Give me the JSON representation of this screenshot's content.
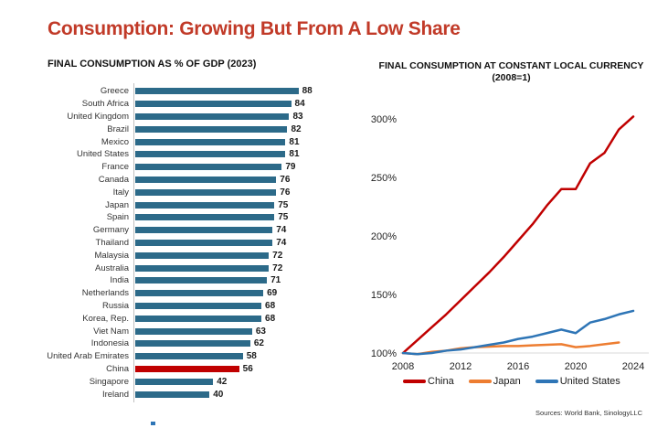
{
  "page": {
    "title": "Consumption: Growing But From A Low Share",
    "title_color": "#C13A28"
  },
  "footer": {
    "sources": "Sources: World Bank, SinologyLLC"
  },
  "chart_data": [
    {
      "type": "bar",
      "orientation": "horizontal",
      "title": "FINAL CONSUMPTION AS % OF GDP (2023)",
      "categories": [
        "Greece",
        "South Africa",
        "United Kingdom",
        "Brazil",
        "Mexico",
        "United States",
        "France",
        "Canada",
        "Italy",
        "Japan",
        "Spain",
        "Germany",
        "Thailand",
        "Malaysia",
        "Australia",
        "India",
        "Netherlands",
        "Russia",
        "Korea, Rep.",
        "Viet Nam",
        "Indonesia",
        "United Arab Emirates",
        "China",
        "Singapore",
        "Ireland"
      ],
      "values": [
        88,
        84,
        83,
        82,
        81,
        81,
        79,
        76,
        76,
        75,
        75,
        74,
        74,
        72,
        72,
        71,
        69,
        68,
        68,
        63,
        62,
        58,
        56,
        42,
        40
      ],
      "bar_color": "#2C6A89",
      "highlight_category": "China",
      "highlight_color": "#C00000",
      "xlim": [
        0,
        100
      ],
      "grid": false,
      "value_labels": true
    },
    {
      "type": "line",
      "title": "FINAL CONSUMPTION AT CONSTANT LOCAL CURRENCY",
      "subtitle": "(2008=1)",
      "x": [
        2008,
        2009,
        2010,
        2011,
        2012,
        2013,
        2014,
        2015,
        2016,
        2017,
        2018,
        2019,
        2020,
        2021,
        2022,
        2023,
        2024
      ],
      "series": [
        {
          "name": "China",
          "color": "#C00000",
          "values": [
            100,
            111,
            122,
            133,
            145,
            157,
            169,
            182,
            196,
            210,
            226,
            240,
            240,
            262,
            271,
            291,
            302
          ]
        },
        {
          "name": "Japan",
          "color": "#ED7D31",
          "values": [
            100,
            99,
            101,
            102,
            104,
            105,
            105.5,
            106,
            106,
            106.5,
            107,
            107.5,
            105,
            106,
            107.5,
            109,
            null
          ]
        },
        {
          "name": "United States",
          "color": "#2E75B6",
          "values": [
            100,
            99,
            100,
            102,
            103,
            105,
            107,
            109,
            112,
            114,
            117,
            120,
            117,
            126,
            129,
            133,
            136
          ]
        }
      ],
      "ylim": [
        100,
        310
      ],
      "yticks": [
        "100%",
        "150%",
        "200%",
        "250%",
        "300%"
      ],
      "xticks": [
        2008,
        2012,
        2016,
        2020,
        2024
      ],
      "legend_position": "bottom",
      "grid": "baseline-only"
    }
  ]
}
